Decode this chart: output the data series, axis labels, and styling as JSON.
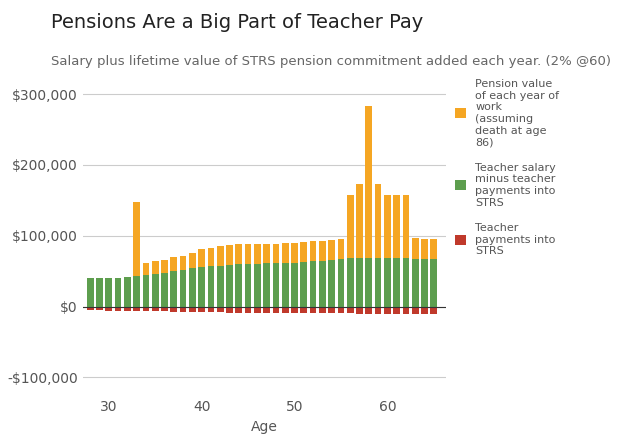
{
  "title": "Pensions Are a Big Part of Teacher Pay",
  "subtitle": "Salary plus lifetime value of STRS pension commitment added each year. (2% @60)",
  "xlabel": "Age",
  "title_fontsize": 14,
  "subtitle_fontsize": 9.5,
  "background_color": "#ffffff",
  "grid_color": "#cccccc",
  "ages": [
    28,
    29,
    30,
    31,
    32,
    33,
    34,
    35,
    36,
    37,
    38,
    39,
    40,
    41,
    42,
    43,
    44,
    45,
    46,
    47,
    48,
    49,
    50,
    51,
    52,
    53,
    54,
    55,
    56,
    57,
    58,
    59,
    60,
    61,
    62,
    63,
    64,
    65
  ],
  "pension": [
    0,
    0,
    0,
    0,
    0,
    105000,
    18000,
    18000,
    18000,
    20000,
    20000,
    22000,
    26000,
    26000,
    28000,
    28000,
    28000,
    28000,
    28000,
    28000,
    28000,
    28000,
    28000,
    28000,
    28000,
    28000,
    28000,
    28000,
    90000,
    105000,
    215000,
    105000,
    90000,
    90000,
    90000,
    30000,
    28000,
    28000
  ],
  "salary": [
    40000,
    40000,
    41000,
    41000,
    42000,
    43000,
    44000,
    46000,
    48000,
    50000,
    52000,
    54000,
    56000,
    57000,
    58000,
    59000,
    60000,
    60000,
    60000,
    61000,
    61000,
    62000,
    62000,
    63000,
    64000,
    65000,
    66000,
    67000,
    68000,
    68000,
    68000,
    68000,
    68000,
    68000,
    68000,
    67000,
    67000,
    67000
  ],
  "strs": [
    -5000,
    -5000,
    -5500,
    -5500,
    -5800,
    -6000,
    -6200,
    -6500,
    -6700,
    -7000,
    -7200,
    -7500,
    -7800,
    -8000,
    -8300,
    -8500,
    -8700,
    -8700,
    -8700,
    -8700,
    -8900,
    -8900,
    -9000,
    -9000,
    -9200,
    -9300,
    -9500,
    -9600,
    -9700,
    -9900,
    -10000,
    -10100,
    -10200,
    -10200,
    -10200,
    -10100,
    -10000,
    -9900
  ],
  "orange_color": "#f5a623",
  "green_color": "#5d9e4e",
  "red_color": "#c0392b",
  "legend_labels": [
    "Pension value\nof each year of\nwork\n(assuming\ndeath at age\n86)",
    "Teacher salary\nminus teacher\npayments into\nSTRS",
    "Teacher\npayments into\nSTRS"
  ],
  "ylim": [
    -125000,
    320000
  ],
  "yticks": [
    -100000,
    0,
    100000,
    200000,
    300000
  ]
}
